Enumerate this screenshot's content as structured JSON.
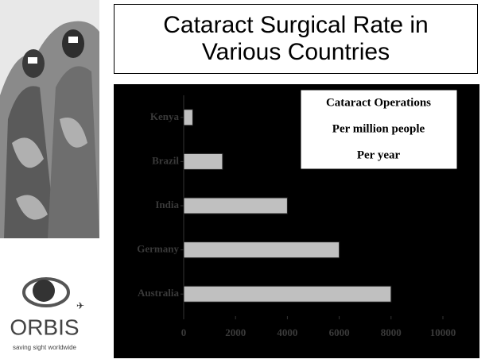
{
  "chart_data": {
    "type": "barh",
    "title": "Cataract Surgical Rate in Various Countries",
    "annotation": [
      "Cataract Operations",
      "Per million people",
      "Per year"
    ],
    "categories": [
      "Kenya",
      "Brazil",
      "India",
      "Germany",
      "Australia"
    ],
    "values": [
      350,
      1500,
      4000,
      6000,
      8000
    ],
    "color": "#c0c0c0",
    "xlim": [
      0,
      10000
    ],
    "xticks": [
      0,
      2000,
      4000,
      6000,
      8000,
      10000
    ],
    "grid": false
  },
  "logo": {
    "name": "ORBIS",
    "tagline": "saving sight worldwide"
  }
}
